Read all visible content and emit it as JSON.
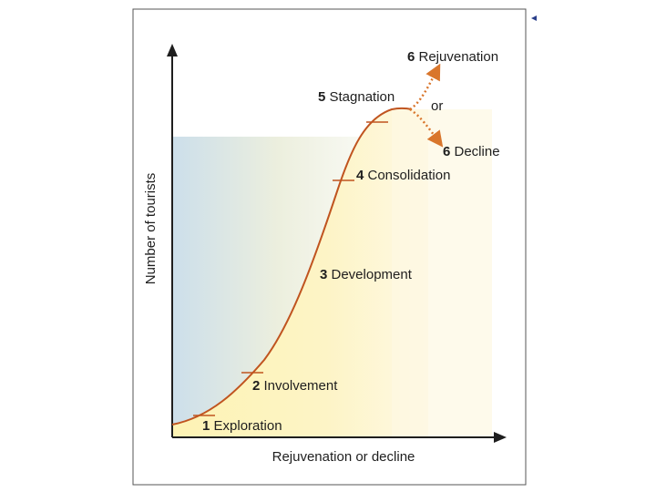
{
  "diagram": {
    "y_axis_label": "Number of tourists",
    "x_axis_label": "Rejuvenation or decline",
    "stages": [
      {
        "num": "1",
        "text": " Exploration"
      },
      {
        "num": "2",
        "text": " Involvement"
      },
      {
        "num": "3",
        "text": " Development"
      },
      {
        "num": "4",
        "text": " Consolidation"
      },
      {
        "num": "5",
        "text": " Stagnation"
      },
      {
        "num": "6",
        "text": " Rejuvenation"
      },
      {
        "num": "6",
        "text": " Decline"
      }
    ],
    "or_label": "or",
    "colors": {
      "curve": "#c0541f",
      "arrow": "#d9762c",
      "axis": "#1e1e1e",
      "fill_blue": "#c6dbe8",
      "fill_yellow": "#fdf2b3",
      "frame": "#555555"
    }
  }
}
